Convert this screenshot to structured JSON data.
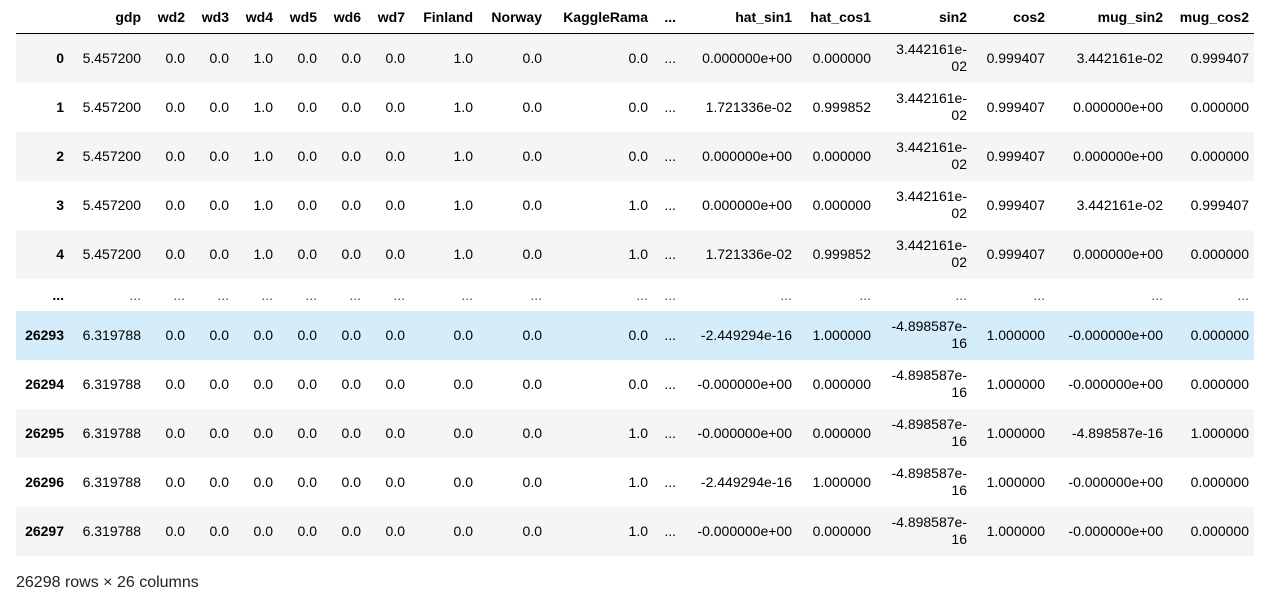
{
  "table": {
    "columns": [
      "",
      "gdp",
      "wd2",
      "wd3",
      "wd4",
      "wd5",
      "wd6",
      "wd7",
      "Finland",
      "Norway",
      "KaggleRama",
      "...",
      "hat_sin1",
      "hat_cos1",
      "sin2",
      "cos2",
      "mug_sin2",
      "mug_cos2"
    ],
    "rows": [
      {
        "index": "0",
        "cells": [
          "5.457200",
          "0.0",
          "0.0",
          "1.0",
          "0.0",
          "0.0",
          "0.0",
          "1.0",
          "0.0",
          "0.0",
          "...",
          "0.000000e+00",
          "0.000000",
          "3.442161e-02",
          "0.999407",
          "3.442161e-02",
          "0.999407"
        ]
      },
      {
        "index": "1",
        "cells": [
          "5.457200",
          "0.0",
          "0.0",
          "1.0",
          "0.0",
          "0.0",
          "0.0",
          "1.0",
          "0.0",
          "0.0",
          "...",
          "1.721336e-02",
          "0.999852",
          "3.442161e-02",
          "0.999407",
          "0.000000e+00",
          "0.000000"
        ]
      },
      {
        "index": "2",
        "cells": [
          "5.457200",
          "0.0",
          "0.0",
          "1.0",
          "0.0",
          "0.0",
          "0.0",
          "1.0",
          "0.0",
          "0.0",
          "...",
          "0.000000e+00",
          "0.000000",
          "3.442161e-02",
          "0.999407",
          "0.000000e+00",
          "0.000000"
        ]
      },
      {
        "index": "3",
        "cells": [
          "5.457200",
          "0.0",
          "0.0",
          "1.0",
          "0.0",
          "0.0",
          "0.0",
          "1.0",
          "0.0",
          "1.0",
          "...",
          "0.000000e+00",
          "0.000000",
          "3.442161e-02",
          "0.999407",
          "3.442161e-02",
          "0.999407"
        ]
      },
      {
        "index": "4",
        "cells": [
          "5.457200",
          "0.0",
          "0.0",
          "1.0",
          "0.0",
          "0.0",
          "0.0",
          "1.0",
          "0.0",
          "1.0",
          "...",
          "1.721336e-02",
          "0.999852",
          "3.442161e-02",
          "0.999407",
          "0.000000e+00",
          "0.000000"
        ]
      },
      {
        "index": "...",
        "cells": [
          "...",
          "...",
          "...",
          "...",
          "...",
          "...",
          "...",
          "...",
          "...",
          "...",
          "...",
          "...",
          "...",
          "...",
          "...",
          "...",
          "..."
        ]
      },
      {
        "index": "26293",
        "cells": [
          "6.319788",
          "0.0",
          "0.0",
          "0.0",
          "0.0",
          "0.0",
          "0.0",
          "0.0",
          "0.0",
          "0.0",
          "...",
          "-2.449294e-16",
          "1.000000",
          "-4.898587e-16",
          "1.000000",
          "-0.000000e+00",
          "0.000000"
        ]
      },
      {
        "index": "26294",
        "cells": [
          "6.319788",
          "0.0",
          "0.0",
          "0.0",
          "0.0",
          "0.0",
          "0.0",
          "0.0",
          "0.0",
          "0.0",
          "...",
          "-0.000000e+00",
          "0.000000",
          "-4.898587e-16",
          "1.000000",
          "-0.000000e+00",
          "0.000000"
        ]
      },
      {
        "index": "26295",
        "cells": [
          "6.319788",
          "0.0",
          "0.0",
          "0.0",
          "0.0",
          "0.0",
          "0.0",
          "0.0",
          "0.0",
          "1.0",
          "...",
          "-0.000000e+00",
          "0.000000",
          "-4.898587e-16",
          "1.000000",
          "-4.898587e-16",
          "1.000000"
        ]
      },
      {
        "index": "26296",
        "cells": [
          "6.319788",
          "0.0",
          "0.0",
          "0.0",
          "0.0",
          "0.0",
          "0.0",
          "0.0",
          "0.0",
          "1.0",
          "...",
          "-2.449294e-16",
          "1.000000",
          "-4.898587e-16",
          "1.000000",
          "-0.000000e+00",
          "0.000000"
        ]
      },
      {
        "index": "26297",
        "cells": [
          "6.319788",
          "0.0",
          "0.0",
          "0.0",
          "0.0",
          "0.0",
          "0.0",
          "0.0",
          "0.0",
          "1.0",
          "...",
          "-0.000000e+00",
          "0.000000",
          "-4.898587e-16",
          "1.000000",
          "-0.000000e+00",
          "0.000000"
        ]
      }
    ],
    "hovered_row_index": "26293",
    "colors": {
      "stripe": "#f5f5f5",
      "hover": "#d5ecfa",
      "header_border": "#000000"
    }
  },
  "footer": {
    "shape_text": "26298 rows × 26 columns"
  }
}
